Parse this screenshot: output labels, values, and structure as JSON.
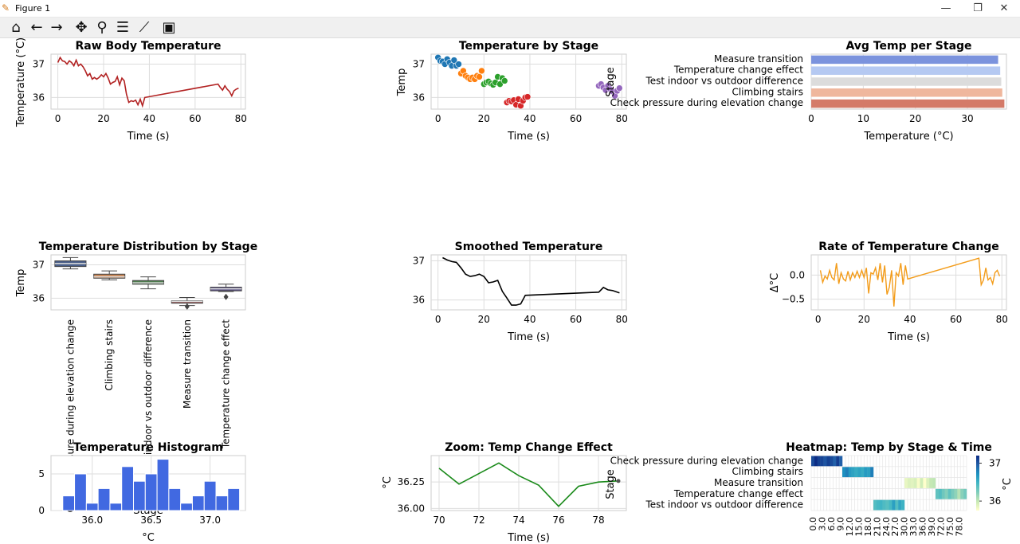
{
  "window": {
    "title": "Figure 1",
    "minimize_glyph": "—",
    "restore_glyph": "❐",
    "close_glyph": "✕"
  },
  "toolbar": {
    "icons": [
      "home-icon",
      "back-arrow-icon",
      "forward-arrow-icon",
      "pan-icon",
      "zoom-icon",
      "configure-subplots-icon",
      "edit-axis-icon",
      "save-icon"
    ]
  },
  "colors": {
    "raw_line": "#b22222",
    "stage_colors": [
      "#1f77b4",
      "#ff7f0e",
      "#2ca02c",
      "#d62728",
      "#9467bd"
    ],
    "avg_bars": [
      "#7b93dd",
      "#b5c9f2",
      "#dcdcdc",
      "#efb79d",
      "#d47a68"
    ],
    "hist": "#4169e1",
    "rate": "#f39c1a",
    "zoom": "#1a8a1a"
  },
  "chart_data": [
    {
      "type": "line",
      "title": "Raw Body Temperature",
      "xlabel": "Time (s)",
      "ylabel": "Temperature (°C)",
      "xlim": [
        -3,
        82
      ],
      "ylim": [
        35.65,
        37.3
      ],
      "xticks": [
        "0",
        "20",
        "40",
        "60",
        "80"
      ],
      "yticks": [
        "36",
        "37"
      ],
      "x": [
        0,
        1,
        2,
        3,
        4,
        5,
        6,
        7,
        8,
        9,
        10,
        11,
        12,
        13,
        14,
        15,
        16,
        17,
        18,
        19,
        20,
        21,
        22,
        23,
        24,
        25,
        26,
        27,
        28,
        29,
        30,
        31,
        32,
        33,
        34,
        35,
        36,
        37,
        38,
        70,
        71,
        72,
        73,
        74,
        75,
        76,
        77,
        78,
        79
      ],
      "values": [
        37.05,
        37.2,
        37.1,
        37.08,
        37.0,
        37.1,
        37.05,
        36.95,
        37.12,
        36.95,
        37.0,
        36.92,
        36.8,
        36.65,
        36.72,
        36.55,
        36.6,
        36.55,
        36.6,
        36.68,
        36.62,
        36.72,
        36.58,
        36.4,
        36.45,
        36.48,
        36.62,
        36.38,
        36.58,
        36.5,
        36.1,
        35.85,
        35.9,
        35.88,
        35.92,
        35.78,
        35.95,
        35.75,
        36.0,
        36.4,
        36.3,
        36.22,
        36.35,
        36.25,
        36.18,
        36.05,
        36.2,
        36.25,
        36.28
      ]
    },
    {
      "type": "scatter",
      "title": "Temperature by Stage",
      "xlabel": "Time (s)",
      "ylabel": "Temp",
      "legend_title": "Stage",
      "xlim": [
        -3,
        82
      ],
      "ylim": [
        35.65,
        37.3
      ],
      "xticks": [
        "0",
        "20",
        "40",
        "60",
        "80"
      ],
      "yticks": [
        "36",
        "37"
      ],
      "series": [
        {
          "x": [
            0,
            1,
            2,
            3,
            4,
            5,
            6,
            7,
            8,
            9
          ],
          "values": [
            37.2,
            37.1,
            37.08,
            37.0,
            37.15,
            37.05,
            36.95,
            37.12,
            36.95,
            37.0
          ]
        },
        {
          "x": [
            10,
            11,
            12,
            13,
            14,
            15,
            16,
            17,
            18,
            19
          ],
          "values": [
            36.72,
            36.8,
            36.65,
            36.6,
            36.55,
            36.6,
            36.55,
            36.65,
            36.62,
            36.8
          ]
        },
        {
          "x": [
            20,
            21,
            22,
            23,
            24,
            25,
            26,
            27,
            28,
            29
          ],
          "values": [
            36.4,
            36.45,
            36.48,
            36.42,
            36.38,
            36.45,
            36.62,
            36.4,
            36.58,
            36.5
          ]
        },
        {
          "x": [
            30,
            31,
            32,
            33,
            34,
            35,
            36,
            37,
            38,
            39
          ],
          "values": [
            35.85,
            35.9,
            35.88,
            35.92,
            35.78,
            35.95,
            35.75,
            35.9,
            36.0,
            36.02
          ]
        },
        {
          "x": [
            70,
            71,
            72,
            73,
            74,
            75,
            76,
            77,
            78,
            79
          ],
          "values": [
            36.35,
            36.4,
            36.3,
            36.22,
            36.35,
            36.25,
            36.18,
            36.05,
            36.2,
            36.28
          ]
        }
      ]
    },
    {
      "type": "bar",
      "orientation": "horizontal",
      "title": "Avg Temp per Stage",
      "xlabel": "Temperature (°C)",
      "ylabel": "",
      "xlim": [
        0,
        37.5
      ],
      "xticks": [
        "0",
        "10",
        "20",
        "30"
      ],
      "categories": [
        "Measure transition",
        "Temperature change effect",
        "Test indoor vs outdoor difference",
        "Climbing stairs",
        "Check pressure during elevation change"
      ],
      "values": [
        35.9,
        36.3,
        36.5,
        36.7,
        37.1
      ]
    },
    {
      "type": "box",
      "title": "Temperature Distribution by Stage",
      "xlabel": "Stage",
      "ylabel": "Temp",
      "ylim": [
        35.65,
        37.3
      ],
      "yticks": [
        "36",
        "37"
      ],
      "categories": [
        "Check pressure during elevation change",
        "Climbing stairs",
        "Test indoor vs outdoor difference",
        "Measure transition",
        "Temperature change effect"
      ],
      "boxes": [
        {
          "min": 36.88,
          "q1": 36.95,
          "median": 37.04,
          "q3": 37.12,
          "max": 37.22,
          "outliers": []
        },
        {
          "min": 36.55,
          "q1": 36.6,
          "median": 36.64,
          "q3": 36.72,
          "max": 36.82,
          "outliers": []
        },
        {
          "min": 36.28,
          "q1": 36.42,
          "median": 36.46,
          "q3": 36.53,
          "max": 36.64,
          "outliers": []
        },
        {
          "min": 35.78,
          "q1": 35.85,
          "median": 35.9,
          "q3": 35.92,
          "max": 36.02,
          "outliers": [
            35.75
          ]
        },
        {
          "min": 36.2,
          "q1": 36.22,
          "median": 36.28,
          "q3": 36.33,
          "max": 36.42,
          "outliers": [
            36.04
          ]
        }
      ]
    },
    {
      "type": "line",
      "title": "Smoothed Temperature",
      "xlabel": "Time (s)",
      "ylabel": "",
      "xlim": [
        -3,
        82
      ],
      "ylim": [
        35.75,
        37.15
      ],
      "xticks": [
        "0",
        "20",
        "40",
        "60",
        "80"
      ],
      "yticks": [
        "36",
        "37"
      ],
      "x": [
        2,
        4,
        6,
        8,
        10,
        12,
        14,
        16,
        18,
        20,
        22,
        24,
        26,
        28,
        30,
        32,
        34,
        36,
        38,
        70,
        72,
        74,
        76,
        78,
        79
      ],
      "values": [
        37.08,
        37.02,
        36.98,
        36.96,
        36.82,
        36.66,
        36.6,
        36.62,
        36.66,
        36.6,
        36.44,
        36.46,
        36.5,
        36.22,
        36.05,
        35.87,
        35.87,
        35.9,
        36.12,
        36.2,
        36.32,
        36.26,
        36.24,
        36.2,
        36.18
      ]
    },
    {
      "type": "line",
      "title": "Rate of Temperature Change",
      "xlabel": "Time (s)",
      "ylabel": "Δ°C",
      "xlim": [
        -3,
        82
      ],
      "ylim": [
        -0.72,
        0.42
      ],
      "xticks": [
        "0",
        "20",
        "40",
        "60",
        "80"
      ],
      "yticks": [
        "0.0",
        "−0.5"
      ],
      "x": [
        1,
        2,
        3,
        4,
        5,
        6,
        7,
        8,
        9,
        10,
        11,
        12,
        13,
        14,
        15,
        16,
        17,
        18,
        19,
        20,
        21,
        22,
        23,
        24,
        25,
        26,
        27,
        28,
        29,
        30,
        31,
        32,
        33,
        34,
        35,
        36,
        37,
        38,
        39,
        70,
        71,
        72,
        73,
        74,
        75,
        76,
        77,
        78,
        79
      ],
      "values": [
        0.1,
        -0.15,
        -0.02,
        -0.08,
        0.1,
        -0.05,
        -0.1,
        0.25,
        -0.18,
        0.05,
        -0.08,
        -0.12,
        0.08,
        -0.1,
        0.05,
        -0.05,
        0.08,
        -0.05,
        0.1,
        -0.05,
        0.15,
        -0.38,
        0.05,
        0.02,
        0.15,
        -0.1,
        0.25,
        -0.15,
        0.2,
        -0.4,
        -0.25,
        0.1,
        -0.65,
        0.05,
        -0.02,
        0.25,
        -0.2,
        0.2,
        -0.08,
        0.35,
        -0.2,
        -0.1,
        0.15,
        -0.1,
        -0.05,
        -0.18,
        0.05,
        0.1,
        -0.02
      ]
    },
    {
      "type": "histogram",
      "title": "Temperature Histogram",
      "xlabel": "°C",
      "ylabel": "",
      "xlim": [
        35.65,
        37.3
      ],
      "ylim": [
        0,
        7.5
      ],
      "xticks": [
        "36.0",
        "36.5",
        "37.0"
      ],
      "yticks": [
        "0",
        "5"
      ],
      "bin_start": 35.75,
      "bin_width": 0.1,
      "counts": [
        2,
        5,
        1,
        3,
        1,
        6,
        4,
        5,
        7,
        3,
        1,
        2,
        4,
        2,
        3
      ]
    },
    {
      "type": "line",
      "title": "Zoom: Temp Change Effect",
      "xlabel": "Time (s)",
      "ylabel": "°C",
      "legend_title": "Stage",
      "xlim": [
        69.6,
        79.4
      ],
      "ylim": [
        35.98,
        36.5
      ],
      "xticks": [
        "70",
        "72",
        "74",
        "76",
        "78"
      ],
      "yticks": [
        "36.00",
        "36.25"
      ],
      "x": [
        70,
        71,
        72,
        73,
        74,
        75,
        76,
        77,
        78,
        79
      ],
      "values": [
        36.38,
        36.23,
        36.33,
        36.43,
        36.31,
        36.22,
        36.02,
        36.21,
        36.25,
        36.26
      ]
    },
    {
      "type": "heatmap",
      "title": "Heatmap: Temp by Stage & Time",
      "xlabel": "",
      "ylabel": "",
      "colorbar_label": "°C",
      "colorbar_ticks": [
        "36",
        "37"
      ],
      "rows": [
        "Check pressure during elevation change",
        "Climbing stairs",
        "Measure transition",
        "Temperature change effect",
        "Test indoor vs outdoor difference"
      ],
      "x_tick_labels": [
        "0.0",
        "3.0",
        "6.0",
        "9.0",
        "12.0",
        "15.0",
        "18.0",
        "21.0",
        "24.0",
        "27.0",
        "30.0",
        "33.0",
        "36.0",
        "39.0",
        "72.0",
        "75.0",
        "78.0"
      ],
      "cells": [
        [
          37.05,
          37.2,
          37.1,
          37.08,
          37.0,
          37.1,
          37.05,
          36.95,
          37.12,
          36.95,
          null,
          null,
          null,
          null,
          null,
          null,
          null,
          null,
          null,
          null,
          null,
          null,
          null,
          null,
          null,
          null,
          null,
          null,
          null,
          null,
          null,
          null,
          null,
          null,
          null,
          null,
          null,
          null,
          null,
          null,
          null,
          null,
          null,
          null,
          null,
          null,
          null,
          null,
          null,
          null
        ],
        [
          null,
          null,
          null,
          null,
          null,
          null,
          null,
          null,
          null,
          null,
          36.72,
          36.8,
          36.65,
          36.6,
          36.55,
          36.6,
          36.55,
          36.65,
          36.62,
          36.8,
          null,
          null,
          null,
          null,
          null,
          null,
          null,
          null,
          null,
          null,
          null,
          null,
          null,
          null,
          null,
          null,
          null,
          null,
          null,
          null,
          null,
          null,
          null,
          null,
          null,
          null,
          null,
          null,
          null,
          null
        ],
        [
          null,
          null,
          null,
          null,
          null,
          null,
          null,
          null,
          null,
          null,
          null,
          null,
          null,
          null,
          null,
          null,
          null,
          null,
          null,
          null,
          null,
          null,
          null,
          null,
          null,
          null,
          null,
          null,
          null,
          null,
          35.85,
          35.9,
          35.88,
          35.92,
          35.78,
          35.95,
          35.75,
          35.9,
          36.0,
          36.02,
          null,
          null,
          null,
          null,
          null,
          null,
          null,
          null,
          null,
          null
        ],
        [
          null,
          null,
          null,
          null,
          null,
          null,
          null,
          null,
          null,
          null,
          null,
          null,
          null,
          null,
          null,
          null,
          null,
          null,
          null,
          null,
          null,
          null,
          null,
          null,
          null,
          null,
          null,
          null,
          null,
          null,
          null,
          null,
          null,
          null,
          null,
          null,
          null,
          null,
          null,
          null,
          36.35,
          36.4,
          36.3,
          36.22,
          36.35,
          36.25,
          36.18,
          36.05,
          36.2,
          36.28
        ],
        [
          null,
          null,
          null,
          null,
          null,
          null,
          null,
          null,
          null,
          null,
          null,
          null,
          null,
          null,
          null,
          null,
          null,
          null,
          null,
          null,
          36.4,
          36.45,
          36.48,
          36.42,
          36.38,
          36.45,
          36.62,
          36.4,
          36.58,
          36.5,
          null,
          null,
          null,
          null,
          null,
          null,
          null,
          null,
          null,
          null,
          null,
          null,
          null,
          null,
          null,
          null,
          null,
          null,
          null,
          null
        ]
      ]
    }
  ]
}
